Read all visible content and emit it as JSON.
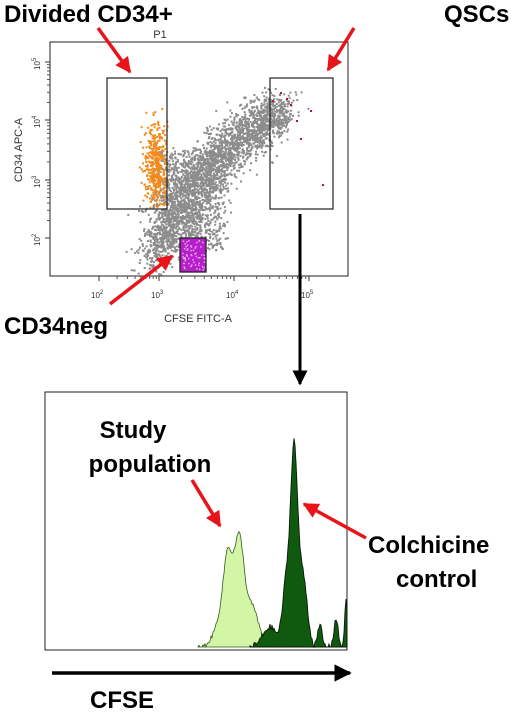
{
  "colors": {
    "arrow_red": "#e8141a",
    "scatter_gray": "#8c8c8c",
    "orange_population": "#f28a1c",
    "cd34neg_fill": "#b51ec9",
    "qsc_dots": "#b0163a",
    "study_histogram": "#d2f5a6",
    "control_histogram": "#0f5a0f"
  },
  "labels": {
    "divided_cd34": "Divided CD34+",
    "qscs": "QSCs",
    "cd34neg": "CD34neg",
    "plot_title": "P1",
    "x_axis": "CFSE FITC-A",
    "y_axis": "CD34 APC-A",
    "study_line1": "Study",
    "study_line2": "population",
    "colchicine_line1": "Colchicine",
    "colchicine_line2": "control",
    "cfse": "CFSE"
  },
  "scatter_ticks": {
    "x": [
      {
        "base": "10",
        "exp": "2"
      },
      {
        "base": "10",
        "exp": "3"
      },
      {
        "base": "10",
        "exp": "4"
      },
      {
        "base": "10",
        "exp": "5"
      }
    ],
    "y": [
      {
        "base": "10",
        "exp": "2"
      },
      {
        "base": "10",
        "exp": "3"
      },
      {
        "base": "10",
        "exp": "4"
      },
      {
        "base": "10",
        "exp": "5"
      }
    ]
  }
}
